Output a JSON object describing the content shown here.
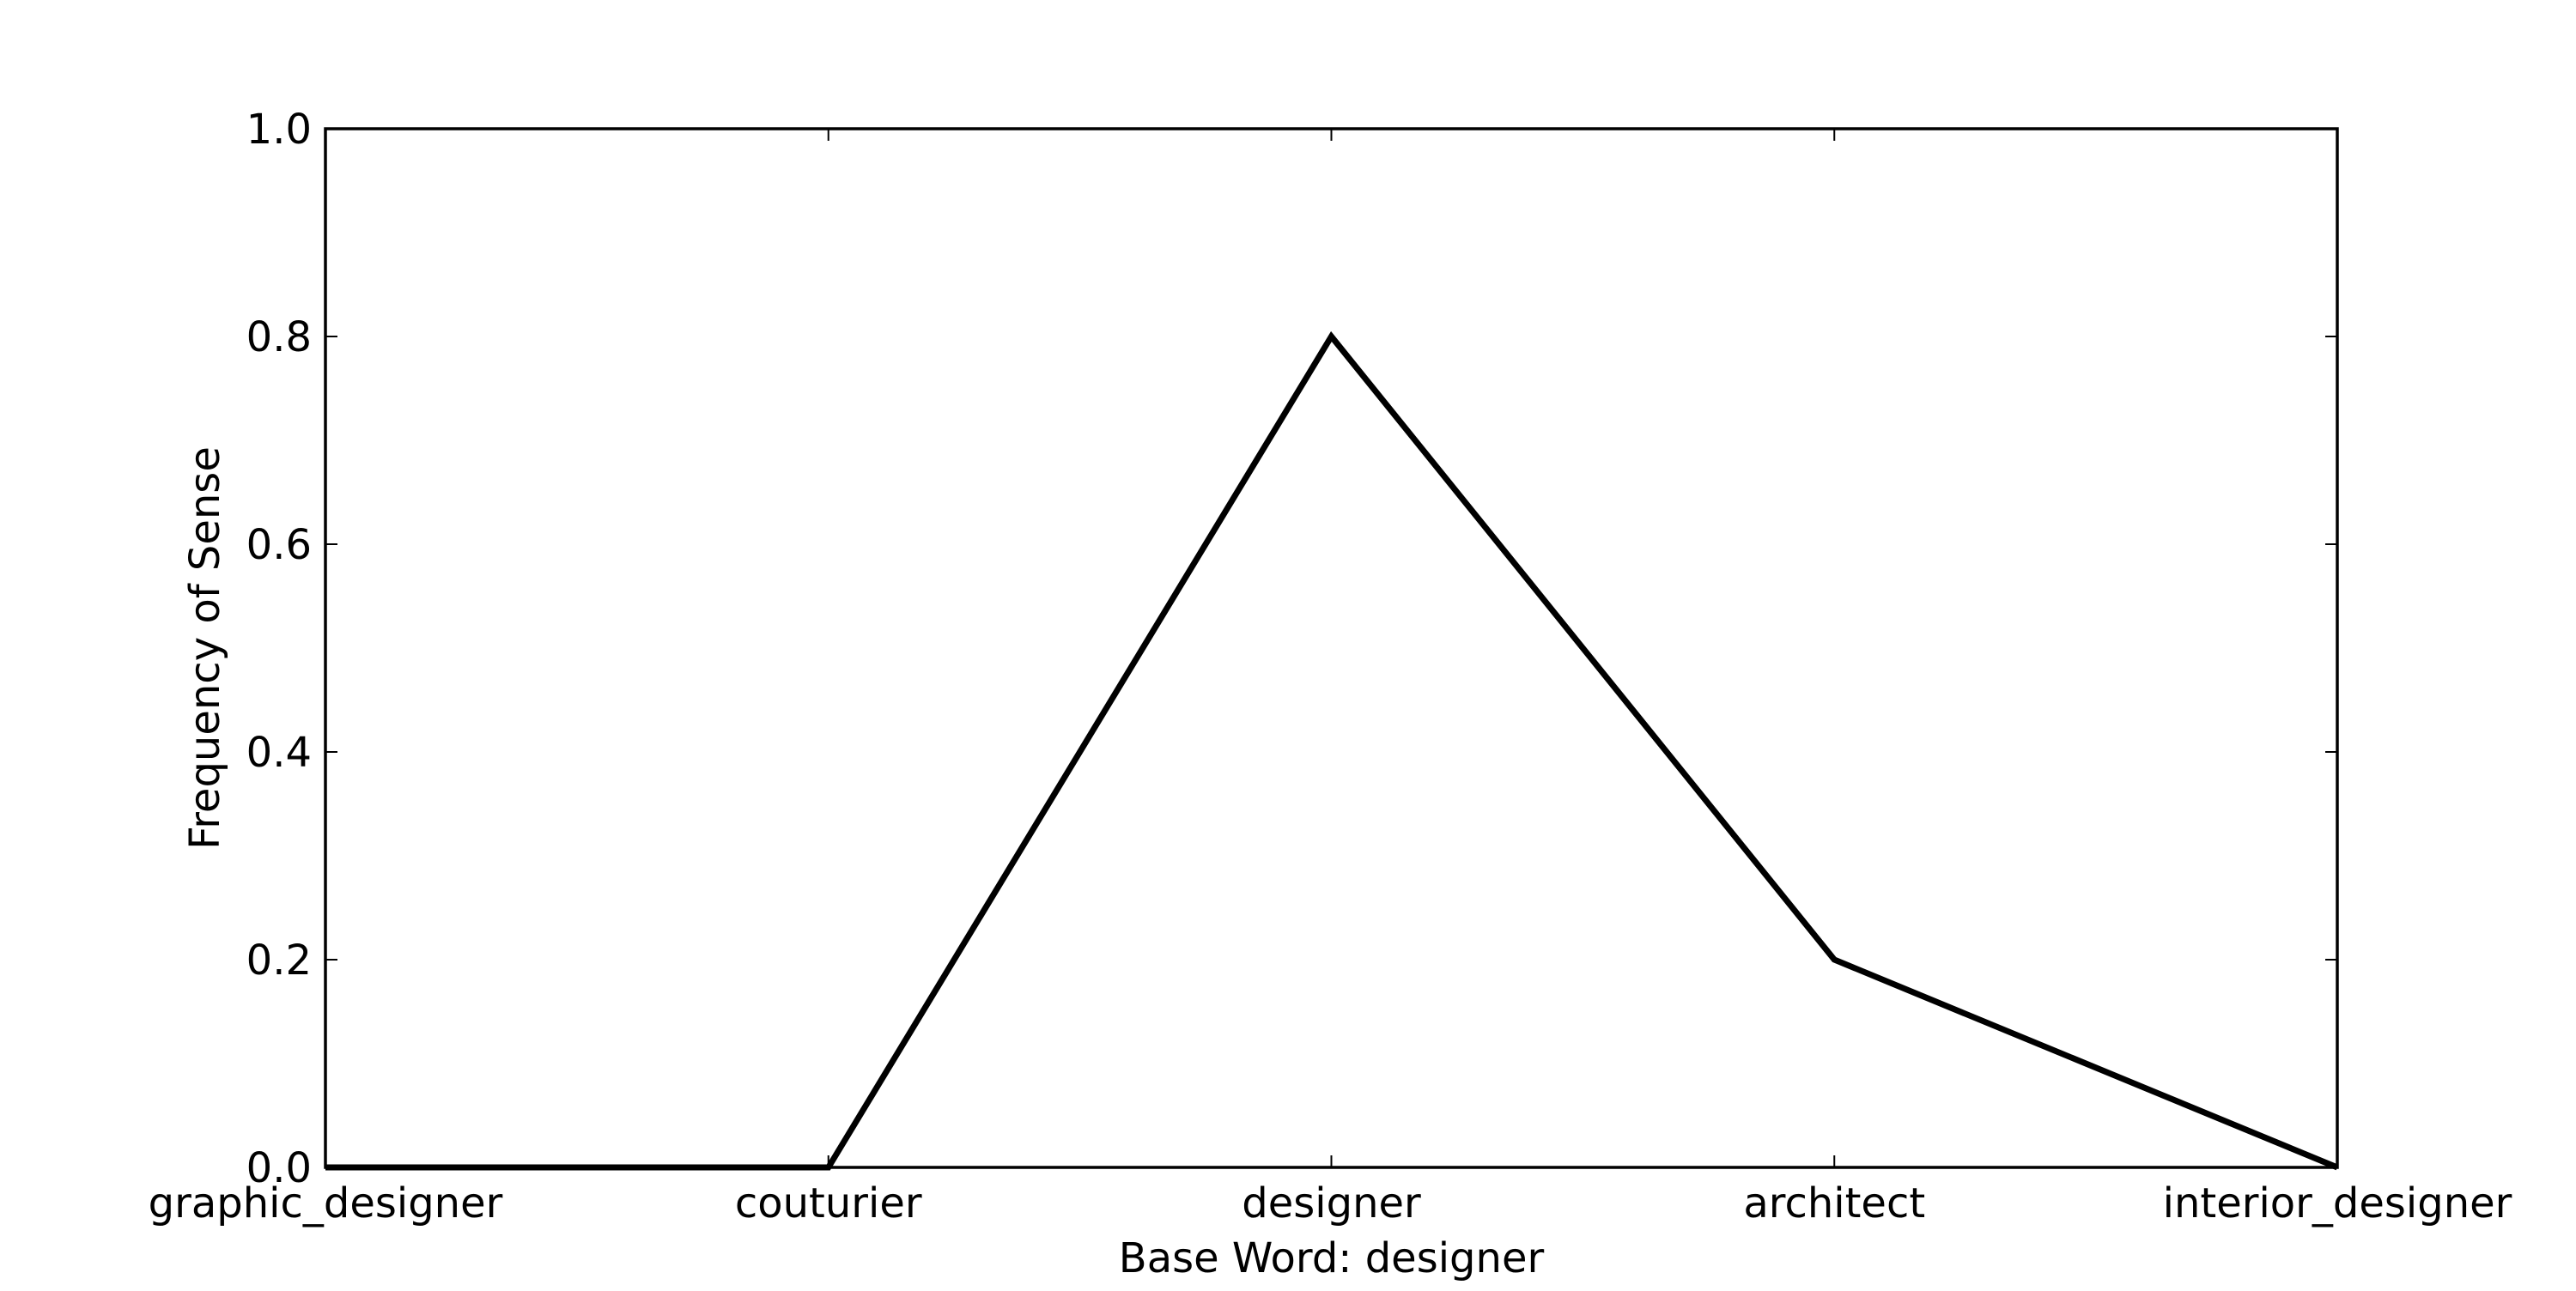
{
  "chart_data": {
    "type": "line",
    "title": "",
    "xlabel": "Base Word: designer",
    "ylabel": "Frequency of Sense",
    "categories": [
      "graphic_designer",
      "couturier",
      "designer",
      "architect",
      "interior_designer"
    ],
    "values": [
      0.0,
      0.0,
      0.8,
      0.2,
      0.0
    ],
    "ylim": [
      0.0,
      1.0
    ],
    "yticks": [
      "0.0",
      "0.2",
      "0.4",
      "0.6",
      "0.8",
      "1.0"
    ],
    "grid": false,
    "legend": "none",
    "line_color": "#000000"
  }
}
